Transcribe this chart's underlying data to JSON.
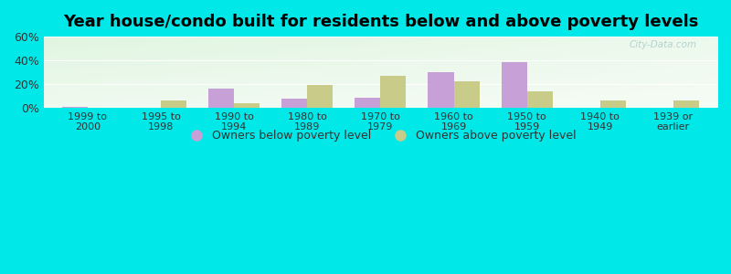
{
  "title": "Year house/condo built for residents below and above poverty levels",
  "categories": [
    "1999 to\n2000",
    "1995 to\n1998",
    "1990 to\n1994",
    "1980 to\n1989",
    "1970 to\n1979",
    "1960 to\n1969",
    "1950 to\n1959",
    "1940 to\n1949",
    "1939 or\nearlier"
  ],
  "below_poverty": [
    0.5,
    0,
    16,
    8,
    8.5,
    30,
    38.5,
    0,
    0
  ],
  "above_poverty": [
    0,
    6,
    4,
    19,
    27,
    22,
    13.5,
    6,
    6
  ],
  "below_color": "#c8a0d8",
  "above_color": "#c8cc88",
  "ylim": [
    0,
    60
  ],
  "yticks": [
    0,
    20,
    40,
    60
  ],
  "ytick_labels": [
    "0%",
    "20%",
    "40%",
    "60%"
  ],
  "outer_background": "#00e8e8",
  "legend_below": "Owners below poverty level",
  "legend_above": "Owners above poverty level",
  "bar_width": 0.35,
  "title_fontsize": 13,
  "watermark": "City-Data.com"
}
